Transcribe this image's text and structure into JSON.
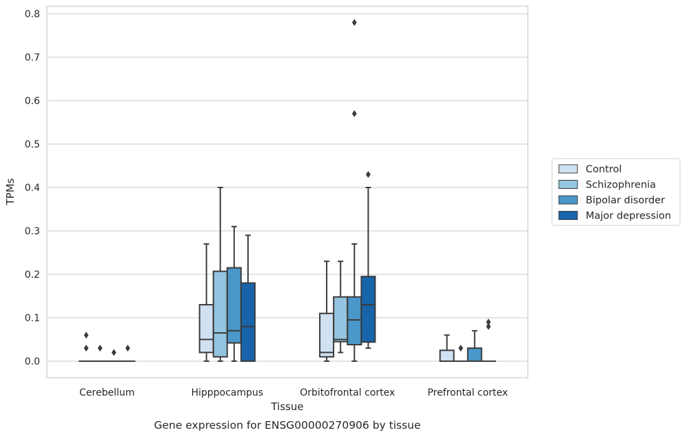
{
  "chart_data": {
    "type": "box",
    "caption": "Gene expression for ENSG00000270906 by tissue",
    "xlabel": "Tissue",
    "ylabel": "TPMs",
    "ylim": [
      -0.04,
      0.82
    ],
    "yticks": [
      "0.0",
      "0.1",
      "0.2",
      "0.3",
      "0.4",
      "0.5",
      "0.6",
      "0.7",
      "0.8"
    ],
    "grid": "horizontal",
    "legend_position": "right",
    "categories": [
      "Cerebellum",
      "Hipppocampus",
      "Orbitofrontal cortex",
      "Prefrontal cortex"
    ],
    "series": [
      {
        "name": "Control",
        "color": "#d0e1f2",
        "boxes": [
          {
            "whislo": 0,
            "q1": 0,
            "med": 0,
            "q3": 0,
            "whishi": 0,
            "fliers": [
              0.06,
              0.03
            ]
          },
          {
            "whislo": 0,
            "q1": 0.02,
            "med": 0.05,
            "q3": 0.13,
            "whishi": 0.27,
            "fliers": []
          },
          {
            "whislo": 0,
            "q1": 0.01,
            "med": 0.02,
            "q3": 0.11,
            "whishi": 0.23,
            "fliers": []
          },
          {
            "whislo": 0,
            "q1": 0,
            "med": 0,
            "q3": 0.025,
            "whishi": 0.06,
            "fliers": []
          }
        ]
      },
      {
        "name": "Schizophrenia",
        "color": "#94c4df",
        "boxes": [
          {
            "whislo": 0,
            "q1": 0,
            "med": 0,
            "q3": 0,
            "whishi": 0,
            "fliers": [
              0.03
            ]
          },
          {
            "whislo": 0,
            "q1": 0.01,
            "med": 0.065,
            "q3": 0.207,
            "whishi": 0.4,
            "fliers": []
          },
          {
            "whislo": 0.02,
            "q1": 0.045,
            "med": 0.05,
            "q3": 0.148,
            "whishi": 0.23,
            "fliers": []
          },
          {
            "whislo": 0,
            "q1": 0,
            "med": 0,
            "q3": 0,
            "whishi": 0,
            "fliers": [
              0.03
            ]
          }
        ]
      },
      {
        "name": "Bipolar disorder",
        "color": "#4a98c9",
        "boxes": [
          {
            "whislo": 0,
            "q1": 0,
            "med": 0,
            "q3": 0,
            "whishi": 0,
            "fliers": [
              0.02
            ]
          },
          {
            "whislo": 0,
            "q1": 0.042,
            "med": 0.07,
            "q3": 0.215,
            "whishi": 0.31,
            "fliers": []
          },
          {
            "whislo": 0,
            "q1": 0.038,
            "med": 0.095,
            "q3": 0.148,
            "whishi": 0.27,
            "fliers": [
              0.78,
              0.57
            ]
          },
          {
            "whislo": 0,
            "q1": 0,
            "med": 0,
            "q3": 0.03,
            "whishi": 0.07,
            "fliers": []
          }
        ]
      },
      {
        "name": "Major depression",
        "color": "#1764ab",
        "boxes": [
          {
            "whislo": 0,
            "q1": 0,
            "med": 0,
            "q3": 0,
            "whishi": 0,
            "fliers": [
              0.03
            ]
          },
          {
            "whislo": 0,
            "q1": 0,
            "med": 0.08,
            "q3": 0.18,
            "whishi": 0.29,
            "fliers": []
          },
          {
            "whislo": 0.03,
            "q1": 0.044,
            "med": 0.13,
            "q3": 0.195,
            "whishi": 0.4,
            "fliers": [
              0.43
            ]
          },
          {
            "whislo": 0,
            "q1": 0,
            "med": 0,
            "q3": 0,
            "whishi": 0,
            "fliers": [
              0.09,
              0.08
            ]
          }
        ]
      }
    ]
  }
}
